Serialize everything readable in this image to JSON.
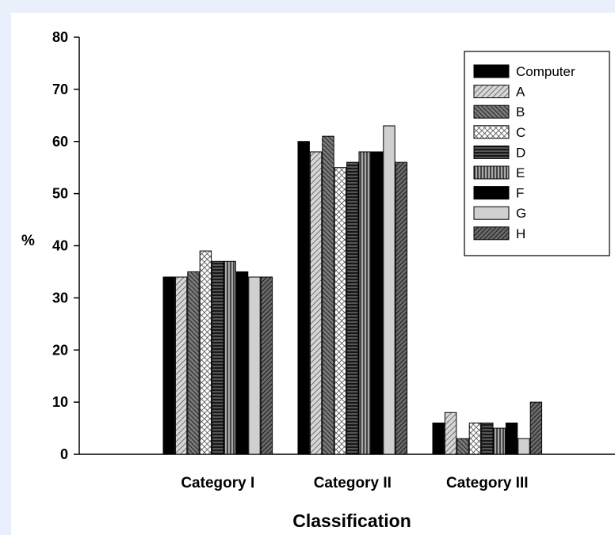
{
  "chart_data": {
    "type": "bar",
    "title": "",
    "xlabel": "Classification",
    "ylabel": "%",
    "ylim": [
      0,
      80
    ],
    "yticks": [
      0,
      10,
      20,
      30,
      40,
      50,
      60,
      70,
      80
    ],
    "grid": false,
    "legend_position": "top-right",
    "categories": [
      "Category I",
      "Category II",
      "Category III"
    ],
    "series": [
      {
        "name": "Computer",
        "values": [
          34,
          60,
          6
        ],
        "fill": "#000000",
        "pattern": "solid"
      },
      {
        "name": "A",
        "values": [
          34,
          58,
          8
        ],
        "fill": "#c8c8c8",
        "pattern": "diag-right-light"
      },
      {
        "name": "B",
        "values": [
          35,
          61,
          3
        ],
        "fill": "#5a5a5a",
        "pattern": "diag-left-dark"
      },
      {
        "name": "C",
        "values": [
          39,
          55,
          6
        ],
        "fill": "#ffffff",
        "pattern": "crosshatch"
      },
      {
        "name": "D",
        "values": [
          37,
          56,
          6
        ],
        "fill": "#333333",
        "pattern": "horizontal"
      },
      {
        "name": "E",
        "values": [
          37,
          58,
          5
        ],
        "fill": "#888888",
        "pattern": "vertical"
      },
      {
        "name": "F",
        "values": [
          35,
          58,
          6
        ],
        "fill": "#000000",
        "pattern": "solid"
      },
      {
        "name": "G",
        "values": [
          34,
          63,
          3
        ],
        "fill": "#cfcfcf",
        "pattern": "solid-light"
      },
      {
        "name": "H",
        "values": [
          34,
          56,
          10
        ],
        "fill": "#4a4a4a",
        "pattern": "diag-right-dark"
      }
    ]
  }
}
